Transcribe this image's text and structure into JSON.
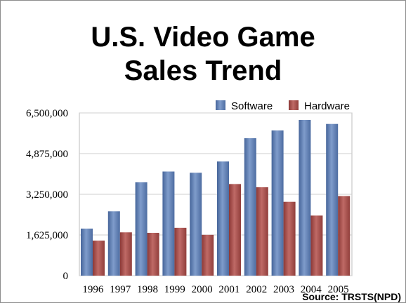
{
  "title": {
    "line1": "U.S. Video Game",
    "line2": "Sales Trend"
  },
  "source": "Source: TRSTS(NPD)",
  "chart_data": {
    "type": "bar",
    "title": "U.S. Video Game Sales Trend",
    "xlabel": "",
    "ylabel": "",
    "categories": [
      "1996",
      "1997",
      "1998",
      "1999",
      "2000",
      "2001",
      "2002",
      "2003",
      "2004",
      "2005"
    ],
    "series": [
      {
        "name": "Software",
        "color": "#5b7bad",
        "values": [
          1880000,
          2570000,
          3730000,
          4160000,
          4110000,
          4560000,
          5490000,
          5800000,
          6220000,
          6060000
        ]
      },
      {
        "name": "Hardware",
        "color": "#a04c4a",
        "values": [
          1400000,
          1730000,
          1710000,
          1910000,
          1630000,
          3660000,
          3530000,
          2950000,
          2400000,
          3180000
        ]
      }
    ],
    "ylim": [
      0,
      6500000
    ],
    "yticks": [
      "0",
      "1,625,000",
      "3,250,000",
      "4,875,000",
      "6,500,000"
    ],
    "ytick_values": [
      0,
      1625000,
      3250000,
      4875000,
      6500000
    ],
    "grid": true,
    "legend": "top-right"
  }
}
